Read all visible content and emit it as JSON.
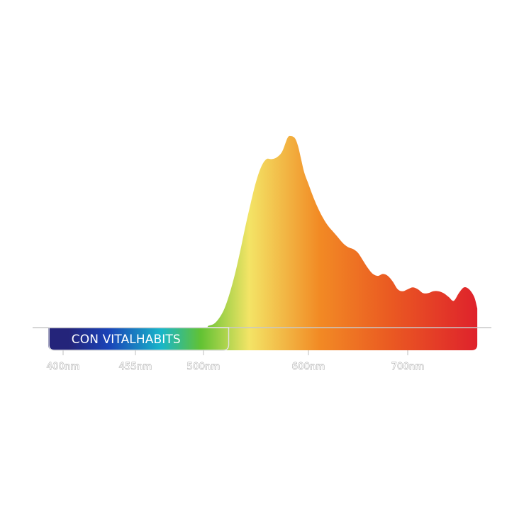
{
  "chart_data": {
    "type": "area",
    "title": "",
    "xlabel": "",
    "ylabel": "",
    "x_unit": "nm",
    "xlim": [
      378,
      770
    ],
    "ylim": [
      0,
      1
    ],
    "grid": false,
    "series": [
      {
        "x": [
          402,
          430,
          480,
          500,
          505,
          510,
          515,
          520,
          525,
          530,
          535,
          540,
          545,
          550,
          555,
          560,
          565,
          570,
          575,
          580,
          583,
          587,
          590,
          593,
          596,
          600,
          605,
          610,
          615,
          620,
          625,
          630,
          635,
          640,
          645,
          650,
          655,
          660,
          665,
          670,
          675,
          680,
          685,
          690,
          695,
          700,
          705,
          710,
          715,
          720,
          725,
          730,
          735,
          740,
          745,
          750,
          755,
          760,
          765,
          768
        ],
        "values": [
          0,
          0,
          0,
          0,
          0.01,
          0.02,
          0.05,
          0.1,
          0.18,
          0.28,
          0.4,
          0.53,
          0.65,
          0.76,
          0.84,
          0.88,
          0.88,
          0.89,
          0.92,
          0.99,
          1.0,
          0.99,
          0.95,
          0.88,
          0.81,
          0.75,
          0.68,
          0.62,
          0.57,
          0.53,
          0.5,
          0.47,
          0.44,
          0.42,
          0.41,
          0.39,
          0.35,
          0.31,
          0.28,
          0.27,
          0.28,
          0.27,
          0.24,
          0.2,
          0.19,
          0.2,
          0.21,
          0.2,
          0.18,
          0.18,
          0.19,
          0.19,
          0.18,
          0.16,
          0.14,
          0.18,
          0.21,
          0.2,
          0.16,
          0.1
        ]
      }
    ],
    "x_ticks": [
      {
        "value": 400,
        "label": "400nm"
      },
      {
        "value": 455,
        "label": "455nm"
      },
      {
        "value": 500,
        "label": "500nm"
      },
      {
        "value": 600,
        "label": "600nm"
      },
      {
        "value": 700,
        "label": "700nm"
      }
    ],
    "banner": {
      "label": "CON VITALHABITS",
      "from_nm": 381,
      "to_nm": 524
    },
    "colors": {
      "deep_blue": "#24247a",
      "blue": "#1a43b8",
      "cyan": "#19b6c9",
      "green": "#62c233",
      "yellow": "#f3e466",
      "orange": "#f28a24",
      "red": "#de1f2c",
      "axis": "#c8c8c8",
      "tick_outline": "#9a9a9a"
    }
  }
}
